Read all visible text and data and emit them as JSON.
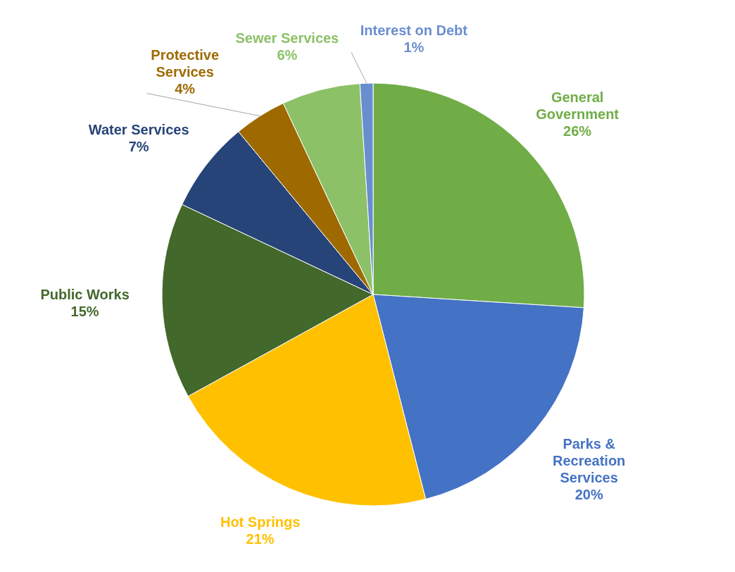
{
  "chart_data": {
    "type": "pie",
    "categories": [
      "General Government",
      "Parks & Recreation Services",
      "Hot Springs",
      "Public Works",
      "Water Services",
      "Protective Services",
      "Sewer Services",
      "Interest on Debt"
    ],
    "values": [
      26,
      20,
      21,
      15,
      7,
      4,
      6,
      1
    ],
    "colors": [
      "#70ad47",
      "#4472c4",
      "#ffc000",
      "#43682b",
      "#264478",
      "#9e6a00",
      "#8cc168",
      "#698ed0"
    ],
    "value_labels": [
      "26%",
      "20%",
      "21%",
      "15%",
      "7%",
      "4%",
      "6%",
      "1%"
    ]
  }
}
